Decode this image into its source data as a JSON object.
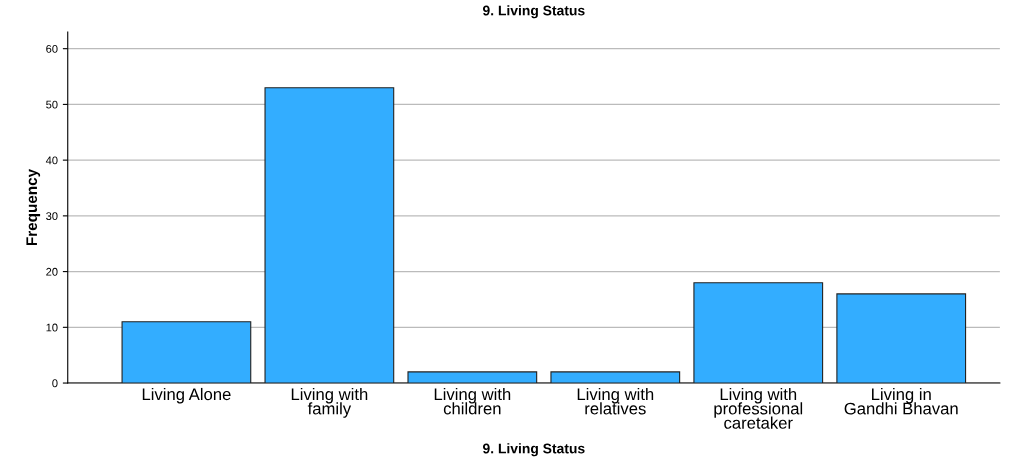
{
  "chart_data": {
    "type": "bar",
    "title": "9. Living Status",
    "xlabel": "9. Living Status",
    "ylabel": "Frequency",
    "categories": [
      "Living Alone",
      "Living with\nfamily",
      "Living with\nchildren",
      "Living with\nrelatives",
      "Living with\nprofessional\ncaretaker",
      "Living in\nGandhi Bhavan"
    ],
    "values": [
      11,
      53,
      2,
      2,
      18,
      16
    ],
    "color": "#33adff",
    "ylim": [
      0,
      63
    ],
    "yticks": [
      0,
      10,
      20,
      30,
      40,
      50,
      60
    ],
    "grid": "y"
  }
}
